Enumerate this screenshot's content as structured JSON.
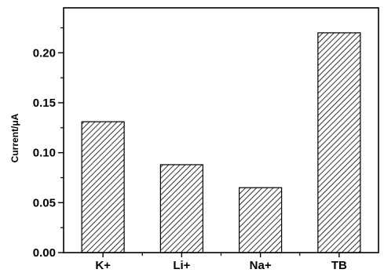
{
  "chart_data": {
    "type": "bar",
    "categories": [
      "K+",
      "Li+",
      "Na+",
      "TB"
    ],
    "values": [
      0.131,
      0.088,
      0.065,
      0.22
    ],
    "title": "",
    "xlabel": "",
    "ylabel": "Current/μA",
    "ylim": [
      0,
      0.245
    ],
    "yticks": [
      "0.00",
      "0.05",
      "0.10",
      "0.15",
      "0.20"
    ],
    "grid": false,
    "bar_fill": "diagonal hatch",
    "colors": {
      "bar_stroke": "#000000",
      "hatch": "#000000",
      "background": "#ffffff"
    }
  }
}
